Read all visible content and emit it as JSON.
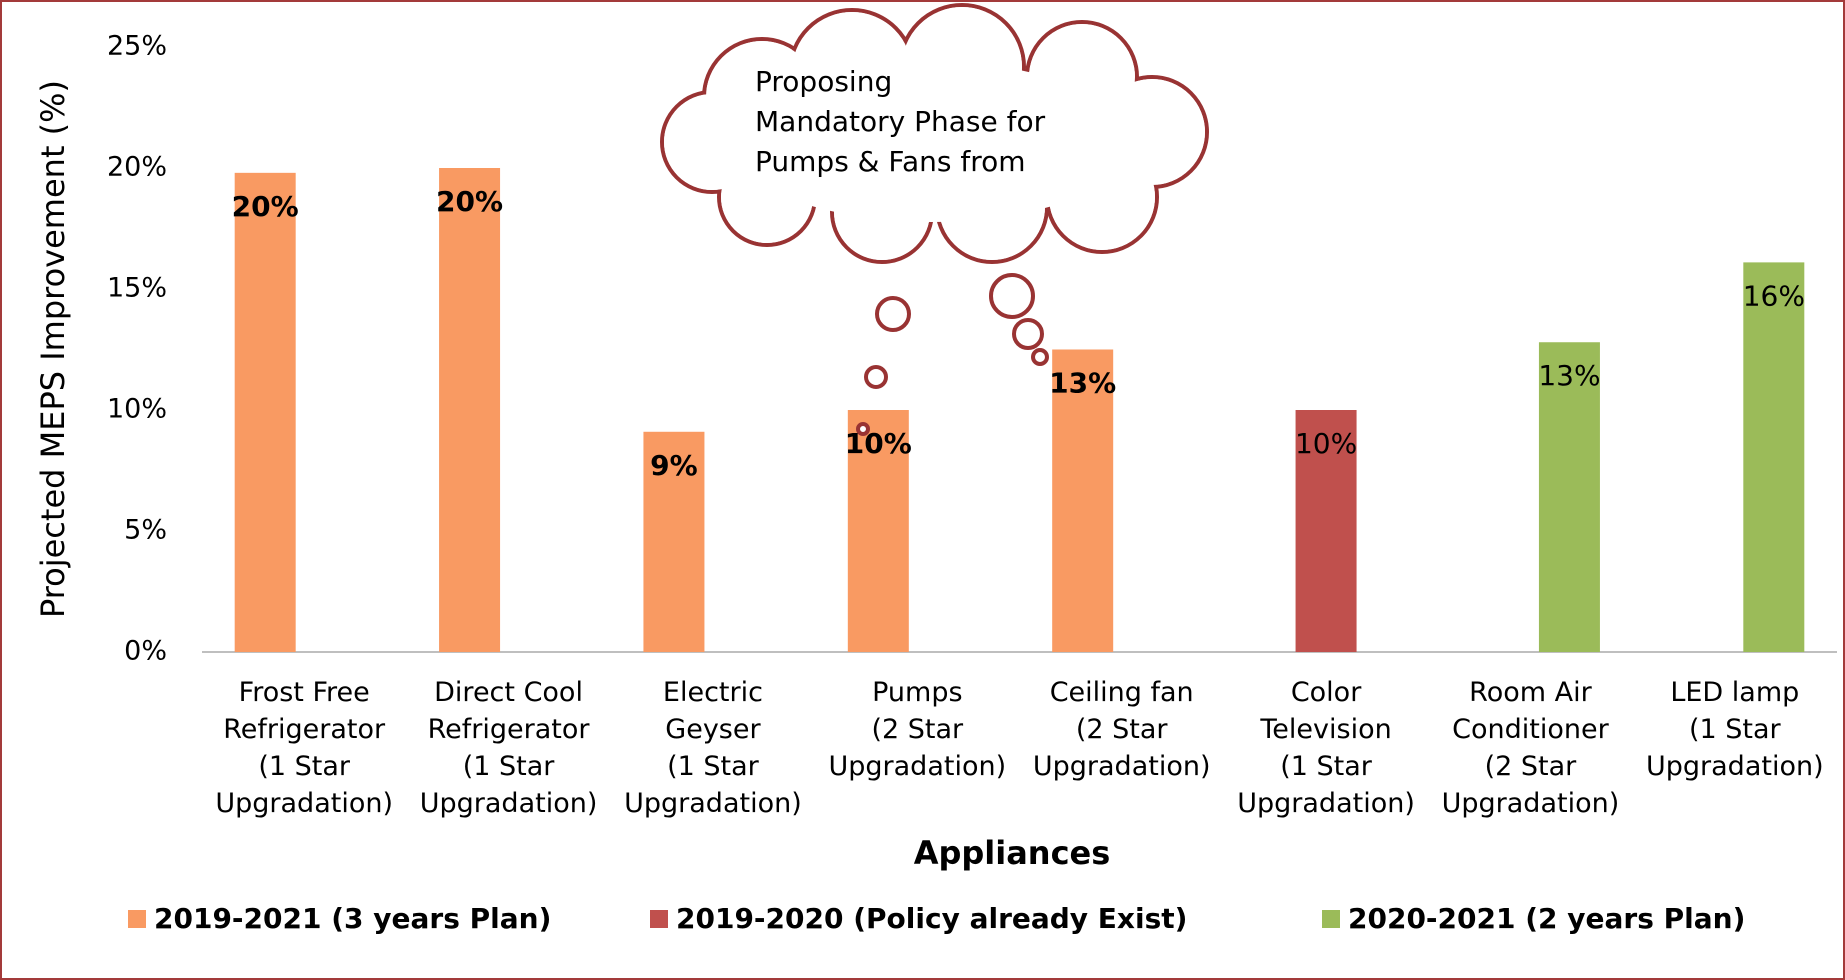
{
  "chart_data": {
    "type": "bar",
    "y_label": "Projected MEPS Improvement (%)",
    "x_label": "Appliances",
    "annotation": "Proposing\nMandatory Phase for\nPumps & Fans from",
    "categories": [
      "Frost Free\nRefrigerator\n(1 Star\nUpgradation)",
      "Direct Cool\nRefrigerator\n(1 Star\nUpgradation)",
      "Electric\nGeyser\n(1 Star\nUpgradation)",
      "Pumps\n(2 Star\nUpgradation)",
      "Ceiling fan\n(2 Star\nUpgradation)",
      "Color\nTelevision\n(1 Star\nUpgradation)",
      "Room Air\nConditioner\n(2 Star\nUpgradation)",
      "LED lamp\n(1 Star\nUpgradation)"
    ],
    "series": [
      {
        "name": "2019-2021 (3 years Plan)",
        "color": "#f99a62",
        "values": [
          19.8,
          20,
          9.1,
          10,
          12.5,
          null,
          null,
          null
        ],
        "value_labels": [
          "20%",
          "20%",
          "9%",
          "10%",
          "13%",
          null,
          null,
          null
        ]
      },
      {
        "name": "2019-2020 (Policy already Exist)",
        "color": "#c0504d",
        "values": [
          null,
          null,
          null,
          null,
          null,
          10,
          null,
          null
        ],
        "value_labels": [
          null,
          null,
          null,
          null,
          null,
          "10%",
          null,
          null
        ]
      },
      {
        "name": "2020-2021 (2 years Plan)",
        "color": "#9bbb59",
        "values": [
          null,
          null,
          null,
          null,
          null,
          null,
          12.8,
          16.1
        ],
        "value_labels": [
          null,
          null,
          null,
          null,
          null,
          null,
          "13%",
          "16%"
        ]
      }
    ],
    "ylim": [
      0,
      25
    ],
    "yticks": [
      {
        "value": 0,
        "label": "0%"
      },
      {
        "value": 5,
        "label": "5%"
      },
      {
        "value": 10,
        "label": "10%"
      },
      {
        "value": 15,
        "label": "15%"
      },
      {
        "value": 20,
        "label": "20%"
      },
      {
        "value": 25,
        "label": "25%"
      }
    ],
    "grid": false,
    "legend": "bottom"
  }
}
